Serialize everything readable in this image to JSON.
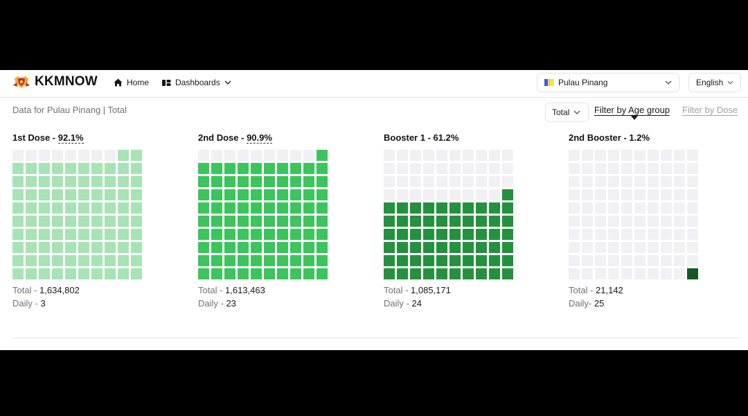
{
  "nav": {
    "brand": "KKMNOW",
    "home": "Home",
    "dashboards": "Dashboards",
    "state": "Pulau Pinang",
    "language": "English"
  },
  "subheader": {
    "crumb": "Data for Pulau Pinang | Total",
    "total_select": "Total",
    "filter_age": "Filter by Age group",
    "filter_dose": "Filter by Dose"
  },
  "cards": [
    {
      "title_prefix": "1st Dose - ",
      "pct_label": "92.1%",
      "pct": 92.1,
      "color": "#a7e3b4",
      "total_label": "Total - ",
      "total": "1,634,802",
      "daily_label": "Daily - ",
      "daily": "3"
    },
    {
      "title_prefix": "2nd Dose - ",
      "pct_label": "90.9%",
      "pct": 90.9,
      "color": "#3bc55c",
      "total_label": "Total - ",
      "total": "1,613,463",
      "daily_label": "Daily - ",
      "daily": "23"
    },
    {
      "title_prefix": "Booster 1 - 61.2%",
      "pct_label": "",
      "pct": 61.2,
      "color": "#23913e",
      "total_label": "Total - ",
      "total": "1,085,171",
      "daily_label": "Daily - ",
      "daily": "24"
    },
    {
      "title_prefix": "2nd Booster - 1.2%",
      "pct_label": "",
      "pct": 1.2,
      "color": "#155824",
      "total_label": "Total - ",
      "total": "21,142",
      "daily_label": "Daily- ",
      "daily": "25"
    }
  ]
}
